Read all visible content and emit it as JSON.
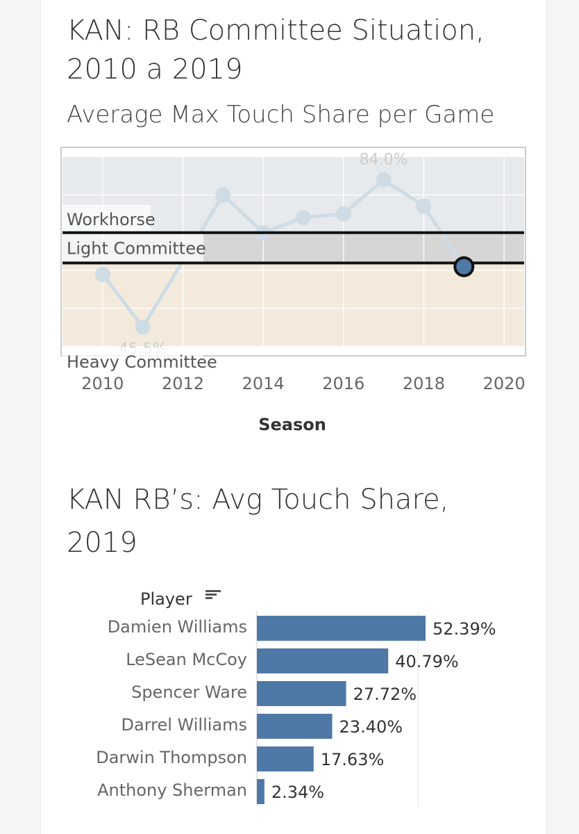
{
  "titles": {
    "line_title": "KAN: RB Committee Situation, 2010 a 2019",
    "line_subtitle": "Average Max Touch Share per Game",
    "bar_title": "KAN RB’s: Avg Touch Share, 2019"
  },
  "chart_data": [
    {
      "type": "line",
      "xlabel": "Season",
      "ylabel": "",
      "x": [
        2010,
        2011,
        2013,
        2014,
        2015,
        2016,
        2017,
        2018,
        2019
      ],
      "values": [
        0.59,
        0.45,
        0.8,
        0.7,
        0.74,
        0.75,
        0.84,
        0.77,
        0.61
      ],
      "xlim": [
        2009,
        2020.5
      ],
      "ylim": [
        0.4,
        0.9
      ],
      "x_ticks": [
        "2010",
        "2012",
        "2014",
        "2016",
        "2018",
        "2020"
      ],
      "data_labels": [
        {
          "season": 2017,
          "text": "84.0%"
        },
        {
          "season": 2011,
          "text": "45.5%"
        }
      ],
      "highlight_season": 2019,
      "bands": [
        {
          "label": "Workhorse",
          "from": 0.7,
          "to": 0.9,
          "color": "#e6eaed"
        },
        {
          "label": "Light Committee",
          "from": 0.62,
          "to": 0.7,
          "color": "#d6d6d6"
        },
        {
          "label": "Heavy Committee",
          "from": 0.4,
          "to": 0.62,
          "color": "#f3eadc"
        }
      ],
      "thresholds": [
        0.7,
        0.62
      ],
      "grid": true,
      "colors": {
        "line": "#cfdce6",
        "highlight": "#4e79a7"
      }
    },
    {
      "type": "bar",
      "orientation": "horizontal",
      "axis_header": "Player",
      "categories": [
        "Damien Williams",
        "LeSean McCoy",
        "Spencer Ware",
        "Darrel Williams",
        "Darwin Thompson",
        "Anthony Sherman"
      ],
      "values": [
        52.39,
        40.79,
        27.72,
        23.4,
        17.63,
        2.34
      ],
      "labels": [
        "52.39%",
        "40.79%",
        "27.72%",
        "23.40%",
        "17.63%",
        "2.34%"
      ],
      "xlim": [
        0,
        100
      ],
      "grid": true,
      "colors": {
        "bar": "#4e79a7"
      }
    }
  ]
}
